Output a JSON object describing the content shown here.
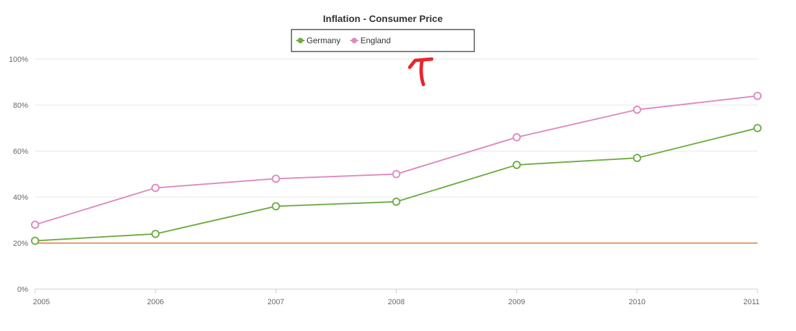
{
  "chart_data": {
    "type": "line",
    "title": "Inflation - Consumer Price",
    "xlabel": "",
    "ylabel": "",
    "categories": [
      "2005",
      "2006",
      "2007",
      "2008",
      "2009",
      "2010",
      "2011"
    ],
    "y_ticks": [
      "0%",
      "20%",
      "40%",
      "60%",
      "80%",
      "100%"
    ],
    "ylim": [
      0,
      100
    ],
    "grid": true,
    "legend": "top-center",
    "threshold": {
      "value": 20,
      "color": "#e39a66"
    },
    "series": [
      {
        "name": "Germany",
        "color": "#70ad47",
        "values": [
          21,
          24,
          36,
          38,
          54,
          57,
          70
        ]
      },
      {
        "name": "England",
        "color": "#de8bc0",
        "values": [
          28,
          44,
          48,
          50,
          66,
          78,
          84
        ]
      }
    ],
    "annotation": {
      "type": "arrow",
      "color": "#e8262b",
      "points_to": "legend"
    }
  }
}
